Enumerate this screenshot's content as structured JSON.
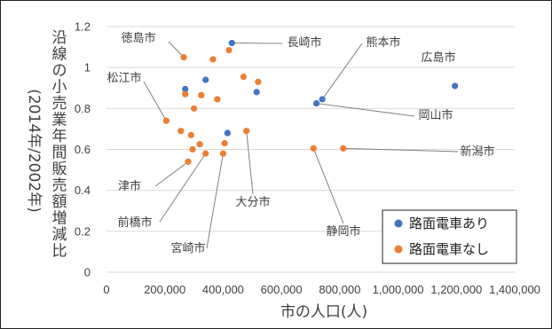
{
  "chart_data": {
    "type": "scatter",
    "xlabel": "市の人口(人)",
    "ylabel_main": "沿線の小売業年間販売額増減比",
    "ylabel_sub": "(2014年/2002年)",
    "xlim": [
      0,
      1400000
    ],
    "ylim": [
      0,
      1.2
    ],
    "x_ticks": [
      0,
      200000,
      400000,
      600000,
      800000,
      1000000,
      1200000,
      1400000
    ],
    "x_tick_labels": [
      "0",
      "200,000",
      "400,000",
      "600,000",
      "800,000",
      "1,000,000",
      "1,200,000",
      "1,400,000"
    ],
    "y_ticks": [
      0,
      0.2,
      0.4,
      0.6,
      0.8,
      1.0,
      1.2
    ],
    "y_tick_labels": [
      "0",
      "0.2",
      "0.4",
      "0.6",
      "0.8",
      "1",
      "1.2"
    ],
    "grid": "horizontal",
    "legend_position": "bottom-right",
    "colors": {
      "with_tram": "#4472C4",
      "without_tram": "#ED7D31",
      "grid": "#d9d9d9",
      "leader": "#7f7f7f"
    },
    "series": [
      {
        "name": "路面電車あり",
        "points": [
          {
            "x": 430000,
            "y": 1.12
          },
          {
            "x": 270000,
            "y": 0.895
          },
          {
            "x": 340000,
            "y": 0.94
          },
          {
            "x": 515000,
            "y": 0.88
          },
          {
            "x": 415000,
            "y": 0.68
          },
          {
            "x": 740000,
            "y": 0.845
          },
          {
            "x": 720000,
            "y": 0.825
          },
          {
            "x": 1195000,
            "y": 0.91
          }
        ]
      },
      {
        "name": "路面電車なし",
        "points": [
          {
            "x": 265000,
            "y": 1.05
          },
          {
            "x": 365000,
            "y": 1.04
          },
          {
            "x": 420000,
            "y": 1.085
          },
          {
            "x": 470000,
            "y": 0.955
          },
          {
            "x": 520000,
            "y": 0.93
          },
          {
            "x": 270000,
            "y": 0.87
          },
          {
            "x": 325000,
            "y": 0.865
          },
          {
            "x": 380000,
            "y": 0.845
          },
          {
            "x": 300000,
            "y": 0.8
          },
          {
            "x": 205000,
            "y": 0.74
          },
          {
            "x": 255000,
            "y": 0.69
          },
          {
            "x": 290000,
            "y": 0.67
          },
          {
            "x": 480000,
            "y": 0.69
          },
          {
            "x": 320000,
            "y": 0.625
          },
          {
            "x": 405000,
            "y": 0.63
          },
          {
            "x": 295000,
            "y": 0.6
          },
          {
            "x": 340000,
            "y": 0.58
          },
          {
            "x": 400000,
            "y": 0.58
          },
          {
            "x": 280000,
            "y": 0.54
          },
          {
            "x": 710000,
            "y": 0.605
          },
          {
            "x": 812000,
            "y": 0.605
          }
        ]
      }
    ],
    "annotations": [
      {
        "label": "徳島市",
        "x": 265000,
        "y": 1.05
      },
      {
        "label": "長崎市",
        "x": 430000,
        "y": 1.12
      },
      {
        "label": "熊本市",
        "x": 740000,
        "y": 0.845
      },
      {
        "label": "広島市",
        "x": 1195000,
        "y": 0.91
      },
      {
        "label": "松江市",
        "x": 205000,
        "y": 0.74
      },
      {
        "label": "岡山市",
        "x": 720000,
        "y": 0.825
      },
      {
        "label": "新潟市",
        "x": 812000,
        "y": 0.605
      },
      {
        "label": "津市",
        "x": 280000,
        "y": 0.54
      },
      {
        "label": "大分市",
        "x": 480000,
        "y": 0.69
      },
      {
        "label": "前橋市",
        "x": 340000,
        "y": 0.58
      },
      {
        "label": "宮崎市",
        "x": 400000,
        "y": 0.58
      },
      {
        "label": "静岡市",
        "x": 710000,
        "y": 0.605
      }
    ]
  }
}
